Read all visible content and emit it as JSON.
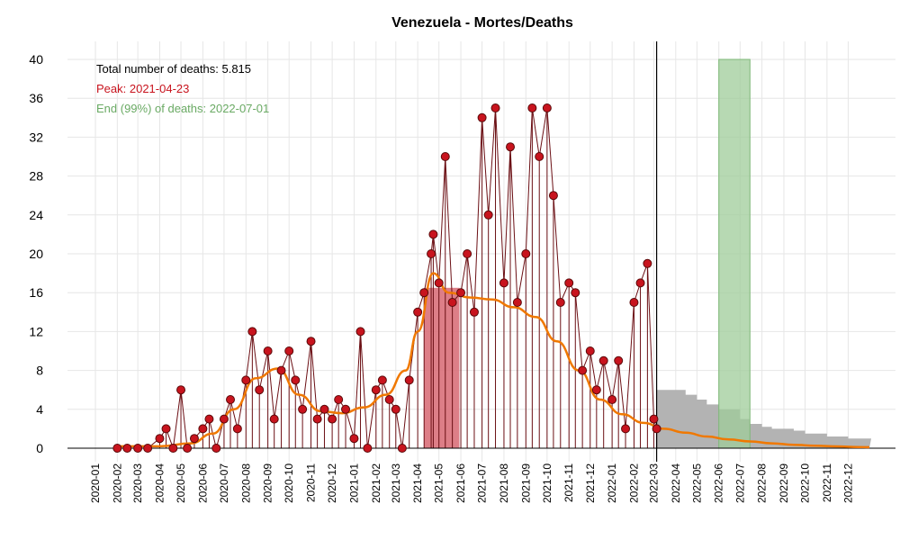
{
  "chart_data": {
    "type": "scatter",
    "title": "Venezuela - Mortes/Deaths",
    "xlabel": "",
    "ylabel": "",
    "ylim": [
      0,
      40
    ],
    "yticks": [
      0,
      4,
      8,
      12,
      16,
      20,
      24,
      28,
      32,
      36,
      40
    ],
    "xlim": [
      "2020-01-01",
      "2022-12-31"
    ],
    "xticks": [
      "2020-01",
      "2020-02",
      "2020-03",
      "2020-04",
      "2020-05",
      "2020-06",
      "2020-07",
      "2020-08",
      "2020-09",
      "2020-10",
      "2020-11",
      "2020-12",
      "2021-01",
      "2021-02",
      "2021-03",
      "2021-04",
      "2021-05",
      "2021-06",
      "2021-07",
      "2021-08",
      "2021-09",
      "2021-10",
      "2021-11",
      "2021-12",
      "2022-01",
      "2022-02",
      "2022-03",
      "2022-04",
      "2022-05",
      "2022-06",
      "2022-07",
      "2022-08",
      "2022-09",
      "2022-10",
      "2022-11",
      "2022-12"
    ],
    "grid": true,
    "annotations": {
      "total": "Total number of deaths: 5.815",
      "peak": "Peak: 2021-04-23",
      "end": "End (99%) of deaths: 2022-07-01"
    },
    "colors": {
      "points": "#c8141e",
      "point_edge": "#5a0a0a",
      "stems": "#6b0f14",
      "smooth": "#f07800",
      "peak_band": "#d9707a",
      "end_band": "#9fcc99",
      "forecast": "#b3b3b3",
      "ann_total": "#000000",
      "ann_peak": "#c8141e",
      "ann_end": "#6aaa64"
    },
    "current_date": "2022-03-05",
    "peak_band": {
      "start": "2021-04-10",
      "end": "2021-05-30",
      "y": 16.5
    },
    "end_band": {
      "start": "2022-06-01",
      "end": "2022-07-15",
      "y": 40
    },
    "smooth": {
      "x": [
        "2020-02-01",
        "2020-04-01",
        "2020-05-15",
        "2020-06-15",
        "2020-07-15",
        "2020-08-15",
        "2020-09-15",
        "2020-10-15",
        "2020-11-15",
        "2020-12-15",
        "2021-01-15",
        "2021-02-15",
        "2021-03-15",
        "2021-04-01",
        "2021-04-23",
        "2021-05-15",
        "2021-06-15",
        "2021-07-15",
        "2021-08-15",
        "2021-09-15",
        "2021-10-15",
        "2021-11-15",
        "2021-12-15",
        "2022-01-15",
        "2022-02-15",
        "2022-03-15",
        "2022-04-15",
        "2022-05-15",
        "2022-06-15",
        "2022-07-15",
        "2022-08-15",
        "2022-09-15",
        "2022-10-15",
        "2022-11-15",
        "2022-12-15",
        "2022-12-31"
      ],
      "y": [
        0.2,
        0.2,
        0.5,
        1.5,
        4,
        7.2,
        8.2,
        5.5,
        3.8,
        3.6,
        4.2,
        5.5,
        8,
        12,
        18,
        16,
        15.5,
        15.3,
        14.5,
        13.5,
        11,
        8,
        5,
        3.5,
        2.6,
        2,
        1.6,
        1.2,
        0.9,
        0.7,
        0.5,
        0.35,
        0.25,
        0.18,
        0.12,
        0.1
      ]
    },
    "forecast": {
      "x": [
        "2022-03-05",
        "2022-04-01",
        "2022-04-15",
        "2022-05-01",
        "2022-05-15",
        "2022-06-01",
        "2022-07-01",
        "2022-07-15",
        "2022-08-01",
        "2022-08-15",
        "2022-09-01",
        "2022-09-15",
        "2022-10-01",
        "2022-10-15",
        "2022-11-01",
        "2022-11-15",
        "2022-12-01",
        "2022-12-15",
        "2022-12-31"
      ],
      "y": [
        6,
        6,
        5.5,
        5,
        4.5,
        4,
        3,
        2.5,
        2.2,
        2,
        2,
        1.8,
        1.5,
        1.5,
        1.2,
        1.2,
        1,
        1,
        1
      ]
    },
    "points": {
      "x": [
        "2020-02-01",
        "2020-02-15",
        "2020-03-01",
        "2020-03-15",
        "2020-04-01",
        "2020-04-10",
        "2020-04-20",
        "2020-05-01",
        "2020-05-10",
        "2020-05-20",
        "2020-06-01",
        "2020-06-10",
        "2020-06-20",
        "2020-07-01",
        "2020-07-10",
        "2020-07-20",
        "2020-08-01",
        "2020-08-10",
        "2020-08-20",
        "2020-09-01",
        "2020-09-10",
        "2020-09-20",
        "2020-10-01",
        "2020-10-10",
        "2020-10-20",
        "2020-11-01",
        "2020-11-10",
        "2020-11-20",
        "2020-12-01",
        "2020-12-10",
        "2020-12-20",
        "2021-01-01",
        "2021-01-10",
        "2021-01-20",
        "2021-02-01",
        "2021-02-10",
        "2021-02-20",
        "2021-03-01",
        "2021-03-10",
        "2021-03-20",
        "2021-04-01",
        "2021-04-10",
        "2021-04-20",
        "2021-04-23",
        "2021-05-01",
        "2021-05-10",
        "2021-05-20",
        "2021-06-01",
        "2021-06-10",
        "2021-06-20",
        "2021-07-01",
        "2021-07-10",
        "2021-07-20",
        "2021-08-01",
        "2021-08-10",
        "2021-08-20",
        "2021-09-01",
        "2021-09-10",
        "2021-09-20",
        "2021-10-01",
        "2021-10-10",
        "2021-10-20",
        "2021-11-01",
        "2021-11-10",
        "2021-11-20",
        "2021-12-01",
        "2021-12-10",
        "2021-12-20",
        "2022-01-01",
        "2022-01-10",
        "2022-01-20",
        "2022-02-01",
        "2022-02-10",
        "2022-02-20",
        "2022-03-01",
        "2022-03-05"
      ],
      "y": [
        0,
        0,
        0,
        0,
        1,
        2,
        0,
        6,
        0,
        1,
        2,
        3,
        0,
        3,
        5,
        2,
        7,
        12,
        6,
        10,
        3,
        8,
        10,
        7,
        4,
        11,
        3,
        4,
        3,
        5,
        4,
        1,
        12,
        0,
        6,
        7,
        5,
        4,
        0,
        7,
        14,
        16,
        20,
        22,
        17,
        30,
        15,
        16,
        20,
        14,
        34,
        24,
        35,
        17,
        31,
        15,
        20,
        35,
        30,
        35,
        26,
        15,
        17,
        16,
        8,
        10,
        6,
        9,
        5,
        9,
        2,
        15,
        17,
        19,
        3,
        2
      ]
    }
  }
}
